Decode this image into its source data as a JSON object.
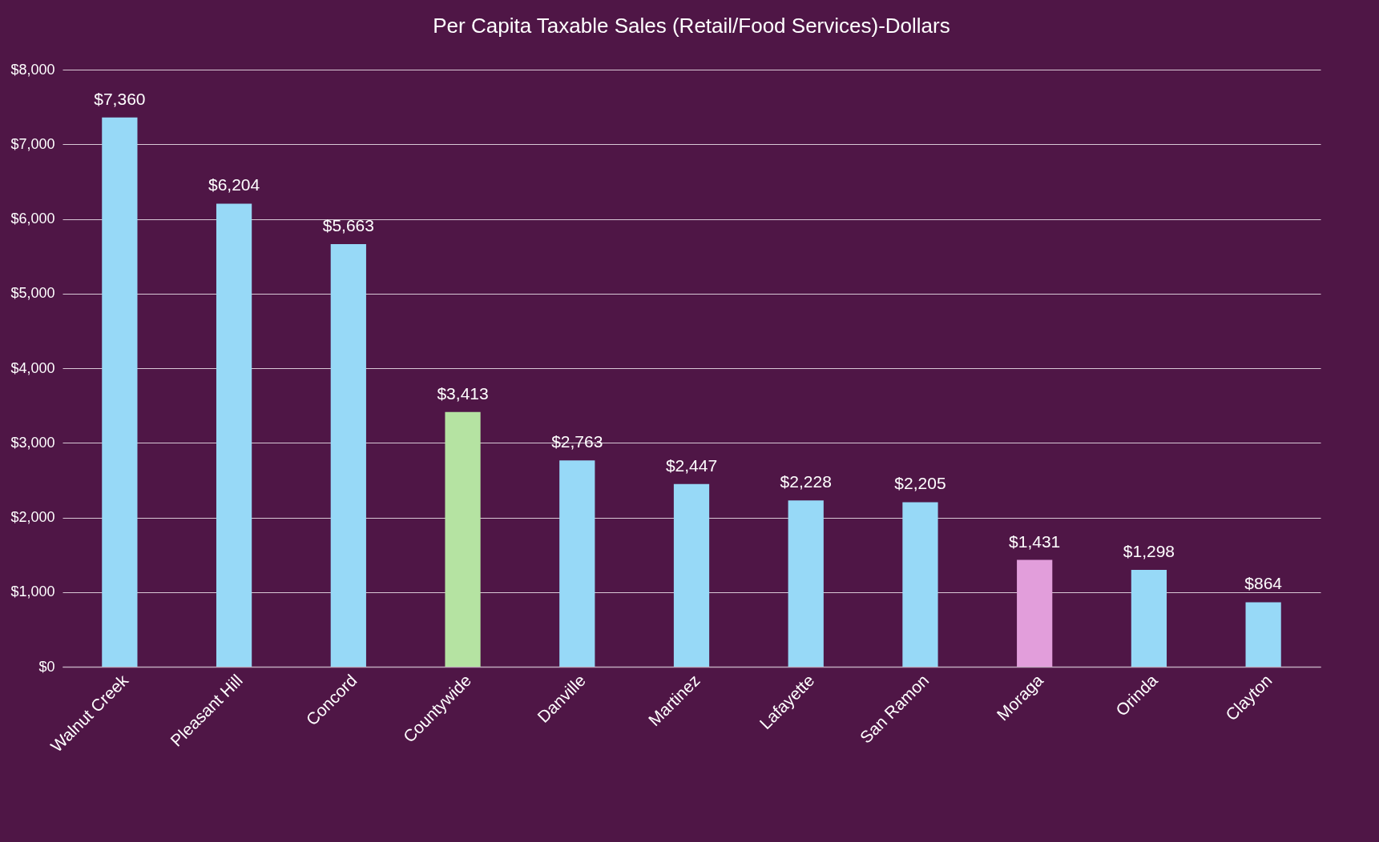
{
  "chart_data": {
    "type": "bar",
    "title": "Per Capita Taxable Sales (Retail/Food Services)-Dollars",
    "categories": [
      "Walnut Creek",
      "Pleasant Hill",
      "Concord",
      "Countywide",
      "Danville",
      "Martinez",
      "Lafayette",
      "San Ramon",
      "Moraga",
      "Orinda",
      "Clayton"
    ],
    "values": [
      7360,
      6204,
      5663,
      3413,
      2763,
      2447,
      2228,
      2205,
      1431,
      1298,
      864
    ],
    "value_labels": [
      "$7,360",
      "$6,204",
      "$5,663",
      "$3,413",
      "$2,763",
      "$2,447",
      "$2,228",
      "$2,205",
      "$1,431",
      "$1,298",
      "$864"
    ],
    "colors": [
      "#97d9f7",
      "#97d9f7",
      "#97d9f7",
      "#b5e3a2",
      "#97d9f7",
      "#97d9f7",
      "#97d9f7",
      "#97d9f7",
      "#e29edb",
      "#97d9f7",
      "#97d9f7"
    ],
    "ylim": [
      0,
      8000
    ],
    "yticks": [
      {
        "value": 0,
        "label": "$0"
      },
      {
        "value": 1000,
        "label": "$1,000"
      },
      {
        "value": 2000,
        "label": "$2,000"
      },
      {
        "value": 3000,
        "label": "$3,000"
      },
      {
        "value": 4000,
        "label": "$4,000"
      },
      {
        "value": 5000,
        "label": "$5,000"
      },
      {
        "value": 6000,
        "label": "$6,000"
      },
      {
        "value": 7000,
        "label": "$7,000"
      },
      {
        "value": 8000,
        "label": "$8,000"
      }
    ],
    "grid": "y",
    "legend": false
  }
}
